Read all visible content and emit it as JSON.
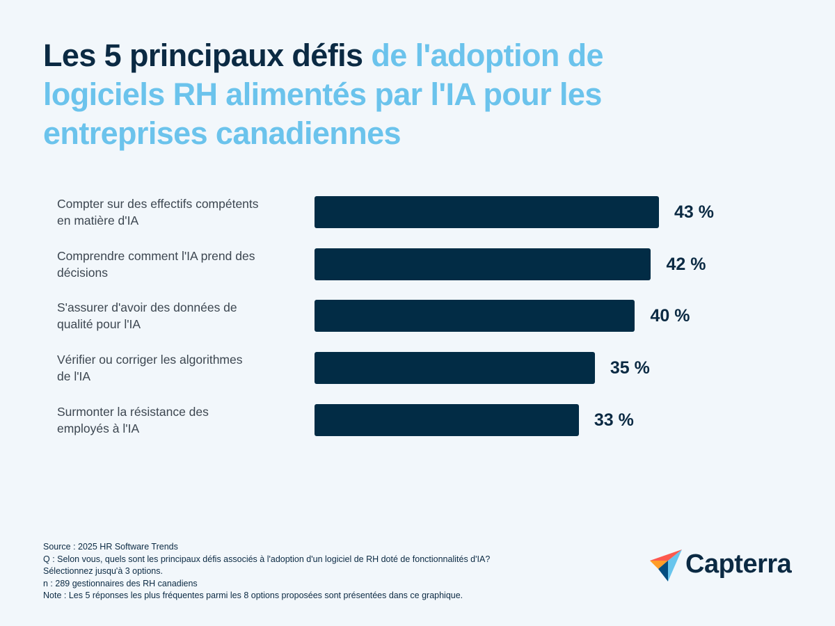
{
  "chart_data": {
    "type": "bar",
    "orientation": "horizontal",
    "title": {
      "lead": "Les 5 principaux défis",
      "rest": "de l'adoption de logiciels RH alimentés par l'IA pour les entreprises canadiennes"
    },
    "categories": [
      "Compter sur des effectifs compétents en matière d'IA",
      "Comprendre comment l'IA prend des décisions",
      "S'assurer d'avoir des données de qualité pour l'IA",
      "Vérifier ou corriger les algorithmes de l'IA",
      "Surmonter la résistance des employés à l'IA"
    ],
    "values": [
      43,
      42,
      40,
      35,
      33
    ],
    "value_labels": [
      "43 %",
      "42 %",
      "40 %",
      "35 %",
      "33 %"
    ],
    "color": "#022c45",
    "notes": [
      "Source : 2025 HR Software Trends",
      "Q : Selon vous, quels sont les principaux défis associés à l'adoption d'un logiciel de RH doté de fonctionnalités d'IA?",
      "Sélectionnez jusqu'à 3 options.",
      "n : 289 gestionnaires des RH canadiens",
      "Note : Les 5 réponses les plus fréquentes parmi les 8 options proposées sont présentées dans ce graphique."
    ],
    "brand": "Capterra"
  }
}
